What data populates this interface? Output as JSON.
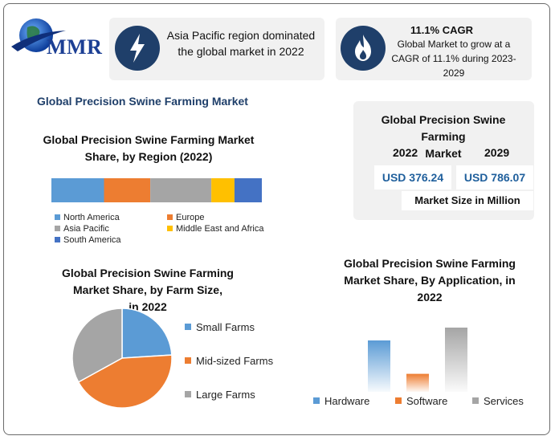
{
  "logo": {
    "text": "MMR"
  },
  "card1": {
    "icon": "lightning-icon",
    "text_line1": "Asia Pacific region dominated",
    "text_line2": "the global market in 2022"
  },
  "card2": {
    "icon": "flame-icon",
    "title": "11.1% CAGR",
    "line1": "Global Market to grow at a",
    "line2": "CAGR of 11.1% during 2023-",
    "line3": "2029"
  },
  "main_title": "Global Precision Swine Farming Market",
  "market_size": {
    "title_line1": "Global Precision Swine Farming",
    "title_line2": "Market",
    "year1": "2022",
    "year2": "2029",
    "value1": "USD 376.24",
    "value2": "USD 786.07",
    "unit": "Market Size in Million"
  },
  "region_chart": {
    "title_line1": "Global Precision Swine Farming Market",
    "title_line2": "Share, by Region (2022)"
  },
  "farm_chart": {
    "title_line1": "Global Precision Swine Farming",
    "title_line2": "Market Share, by Farm Size,",
    "title_line3": "in 2022"
  },
  "app_chart": {
    "title_line1": "Global Precision Swine Farming",
    "title_line2": "Market Share, By Application, in",
    "title_line3": "2022"
  },
  "colors": {
    "blue": "#5b9bd5",
    "orange": "#ed7d31",
    "gray": "#a5a5a5",
    "yellow": "#ffc000",
    "darkblue": "#4472c4",
    "navy": "#1f3f6a"
  },
  "chart_data": [
    {
      "type": "bar",
      "orientation": "horizontal-stacked",
      "categories": [
        "North America",
        "Europe",
        "Asia Pacific",
        "Middle East and Africa",
        "South America"
      ],
      "values": [
        25,
        22,
        29,
        11,
        13
      ],
      "colors": [
        "#5b9bd5",
        "#ed7d31",
        "#a5a5a5",
        "#ffc000",
        "#4472c4"
      ],
      "legend_position": "bottom"
    },
    {
      "type": "pie",
      "categories": [
        "Small Farms",
        "Mid-sized Farms",
        "Large Farms"
      ],
      "values": [
        24,
        43,
        33
      ],
      "colors": [
        "#5b9bd5",
        "#ed7d31",
        "#a5a5a5"
      ],
      "legend_position": "right"
    },
    {
      "type": "bar",
      "categories": [
        "Hardware",
        "Software",
        "Services"
      ],
      "values": [
        40,
        14,
        50
      ],
      "colors": [
        "#5b9bd5",
        "#ed7d31",
        "#a5a5a5"
      ],
      "legend_position": "bottom"
    }
  ]
}
